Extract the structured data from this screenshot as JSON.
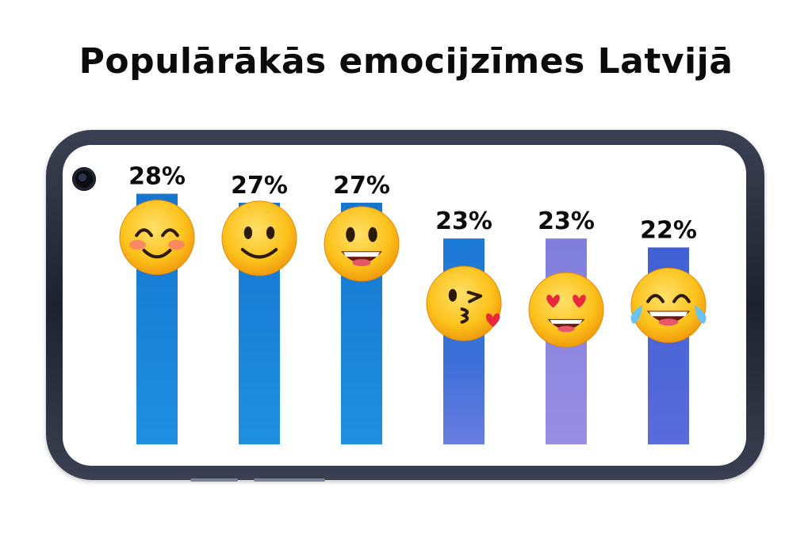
{
  "title": "Populārākās emocijzīmes Latvijā",
  "chart_data": {
    "type": "bar",
    "title": "Populārākās emocijzīmes Latvijā",
    "categories": [
      "smiling-face-with-smiling-eyes",
      "slightly-smiling-face",
      "grinning-face-with-big-eyes",
      "face-blowing-a-kiss",
      "smiling-face-with-heart-eyes",
      "face-with-tears-of-joy"
    ],
    "values": [
      28,
      27,
      27,
      23,
      23,
      22
    ],
    "labels": [
      "28%",
      "27%",
      "27%",
      "23%",
      "23%",
      "22%"
    ],
    "ylim": [
      0,
      35
    ],
    "grid": false,
    "bar_colors": [
      "#1781d6",
      "#1781d6",
      "#1781d6",
      "#3a72d8",
      "#8a85e0",
      "#4d63d6"
    ]
  },
  "colors": {
    "emoji_face": "#fcc21b",
    "emoji_shade": "#f19a0d",
    "eye": "#2b1b08",
    "mouth": "#6b1a12",
    "blush": "#f87c6a",
    "heart": "#e8283c",
    "tear": "#6cc3f0"
  }
}
